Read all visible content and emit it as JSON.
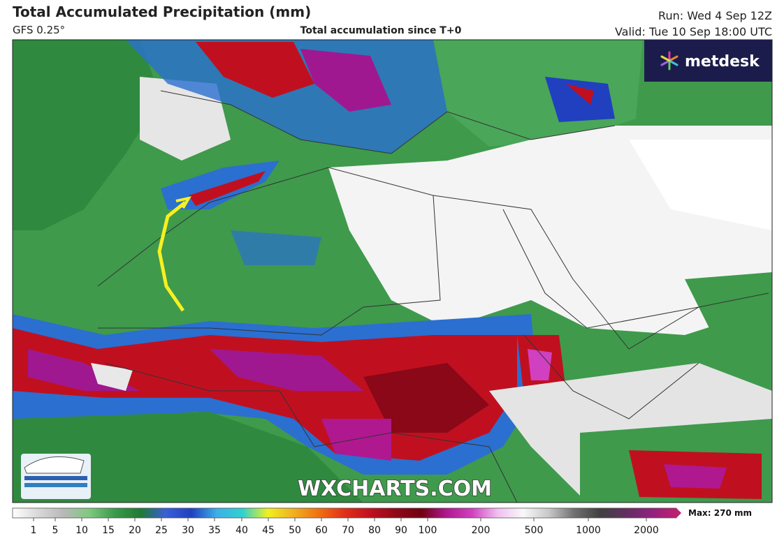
{
  "header": {
    "title": "Total Accumulated Precipitation (mm)",
    "model": "GFS 0.25°",
    "subtitle": "Total accumulation since T+0",
    "run": "Run: Wed 4 Sep 12Z",
    "valid": "Valid: Tue 10 Sep 18:00 UTC"
  },
  "brand": "metdesk",
  "watermark": "WXCHARTS.COM",
  "legend": {
    "labels": [
      "1",
      "5",
      "10",
      "15",
      "20",
      "25",
      "30",
      "35",
      "40",
      "45",
      "50",
      "60",
      "70",
      "80",
      "90",
      "100",
      "200",
      "500",
      "1000",
      "2000"
    ],
    "max": "Max: 270 mm",
    "colors": [
      "#ffffff",
      "#d8d8d8",
      "#b8b8b8",
      "#7fc97f",
      "#3a9a4a",
      "#1f7a34",
      "#3a5fd8",
      "#2040c0",
      "#3cb0e8",
      "#30d0d0",
      "#f0f020",
      "#f0b020",
      "#f07010",
      "#e03018",
      "#c01020",
      "#900818",
      "#700010",
      "#b01890",
      "#d040c0",
      "#f0c0f0",
      "#f8f8f8",
      "#c8c8c8",
      "#707070",
      "#404040",
      "#603060",
      "#902080",
      "#c02070"
    ]
  }
}
